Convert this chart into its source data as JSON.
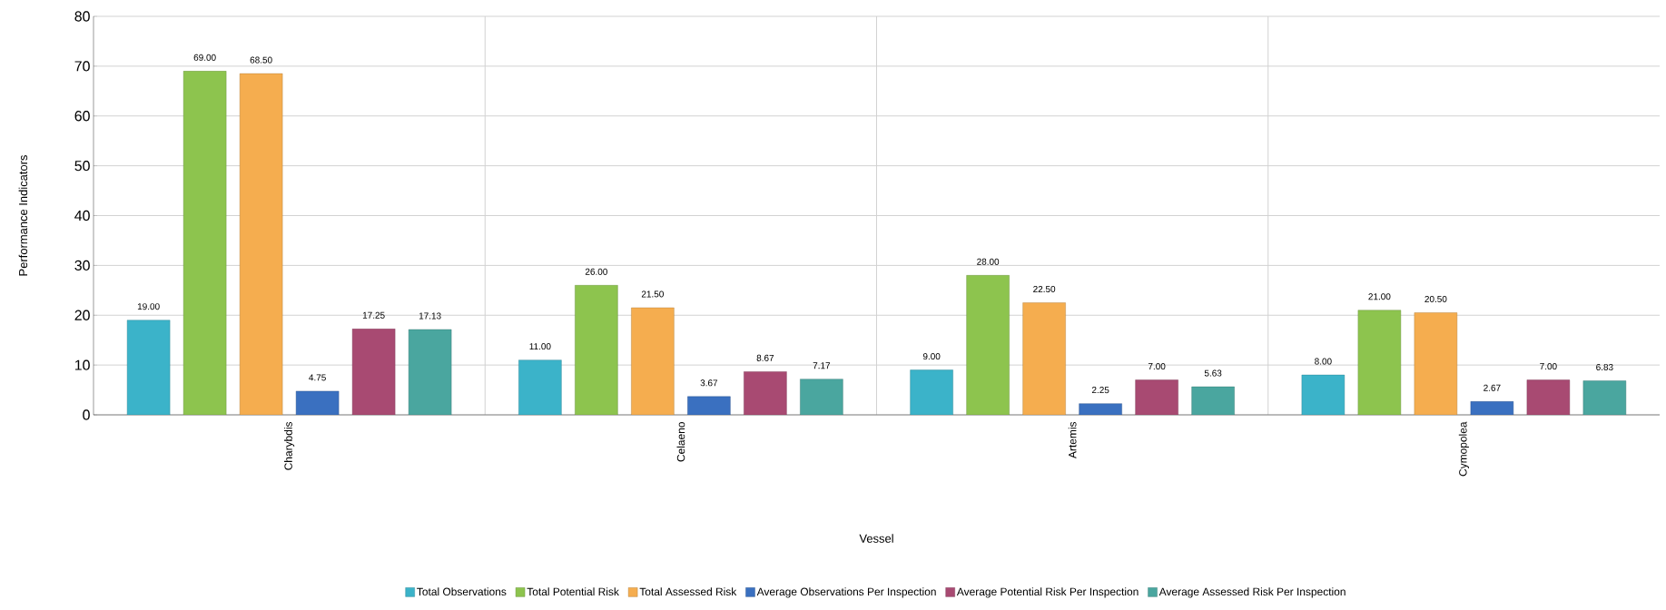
{
  "chart_data": {
    "type": "bar",
    "xlabel": "Vessel",
    "ylabel": "Performance Indicators",
    "categories": [
      "Charybdis",
      "Celaeno",
      "Artemis",
      "Cymopolea"
    ],
    "series": [
      {
        "name": "Total Observations",
        "color": "#3bb3c9",
        "values": [
          19,
          11,
          9,
          8
        ],
        "value_labels": [
          "19.00",
          "11.00",
          "9.00",
          "8.00"
        ]
      },
      {
        "name": "Total Potential Risk",
        "color": "#8dc44e",
        "values": [
          69,
          26,
          28,
          21
        ],
        "value_labels": [
          "69.00",
          "26.00",
          "28.00",
          "21.00"
        ]
      },
      {
        "name": "Total Assessed Risk",
        "color": "#f5ad4f",
        "values": [
          68.5,
          21.5,
          22.5,
          20.5
        ],
        "value_labels": [
          "68.50",
          "21.50",
          "22.50",
          "20.50"
        ]
      },
      {
        "name": "Average Observations Per Inspection",
        "color": "#3a70c0",
        "values": [
          4.75,
          3.67,
          2.25,
          2.67
        ],
        "value_labels": [
          "4.75",
          "3.67",
          "2.25",
          "2.67"
        ]
      },
      {
        "name": "Average Potential Risk Per Inspection",
        "color": "#a84a72",
        "values": [
          17.25,
          8.67,
          7,
          7
        ],
        "value_labels": [
          "17.25",
          "8.67",
          "7.00",
          "7.00"
        ]
      },
      {
        "name": "Average Assessed Risk Per Inspection",
        "color": "#4aa69f",
        "values": [
          17.13,
          7.17,
          5.63,
          6.83
        ],
        "value_labels": [
          "17.13",
          "7.17",
          "5.63",
          "6.83"
        ]
      }
    ],
    "ylim": [
      0,
      80
    ],
    "yticks": [
      0,
      10,
      20,
      30,
      40,
      50,
      60,
      70,
      80
    ],
    "grid": true,
    "legend": "bottom"
  }
}
